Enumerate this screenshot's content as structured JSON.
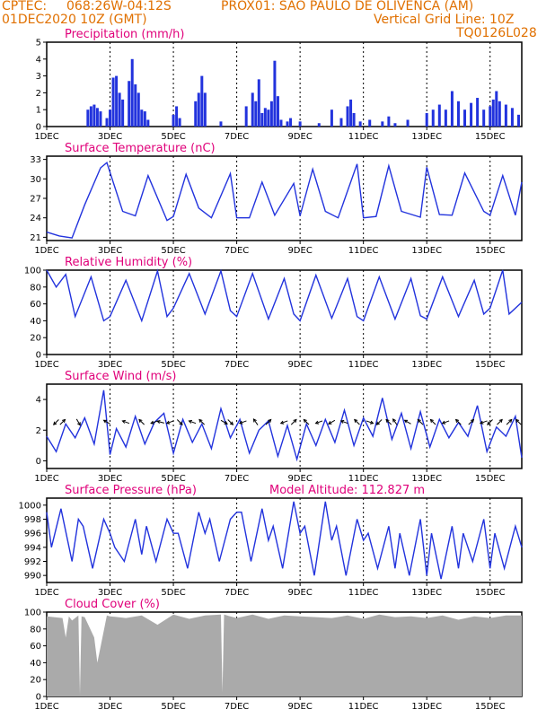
{
  "header": {
    "source": "CPTEC:",
    "coords": "068:26W-04:12S",
    "station": "PROX01: SAO PAULO DE OLIVENCA (AM)",
    "date": "01DEC2020 10Z (GMT)",
    "grid_note": "Vertical Grid Line: 10Z",
    "code": "TQ0126L028"
  },
  "colors": {
    "header": "#e07000",
    "title": "#e0007a",
    "series": "#2233dd",
    "cloud": "#aaaaaa"
  },
  "x_axis": {
    "day_start": 1,
    "day_end": 16,
    "tick_days": [
      1,
      3,
      5,
      7,
      9,
      11,
      13,
      15
    ],
    "tick_labels": [
      "1DEC",
      "3DEC",
      "5DEC",
      "7DEC",
      "9DEC",
      "11DEC",
      "13DEC",
      "15DEC"
    ]
  },
  "chart_data": [
    {
      "key": "precip",
      "type": "bar",
      "title": "Precipitation (mm/h)",
      "ylim": [
        0,
        5
      ],
      "yticks": [
        0,
        1,
        2,
        3,
        4,
        5
      ],
      "x": [
        2.3,
        2.4,
        2.5,
        2.6,
        2.7,
        2.9,
        3.0,
        3.1,
        3.2,
        3.3,
        3.4,
        3.6,
        3.7,
        3.8,
        3.9,
        4.0,
        4.1,
        4.2,
        5.0,
        5.1,
        5.2,
        5.7,
        5.8,
        5.9,
        6.0,
        6.5,
        7.3,
        7.5,
        7.6,
        7.7,
        7.8,
        7.9,
        8.0,
        8.1,
        8.2,
        8.3,
        8.4,
        8.6,
        8.7,
        9.0,
        9.6,
        10.0,
        10.3,
        10.5,
        10.6,
        10.7,
        10.9,
        11.2,
        11.6,
        11.8,
        12.0,
        12.4,
        13.0,
        13.2,
        13.4,
        13.6,
        13.8,
        14.0,
        14.2,
        14.4,
        14.6,
        14.8,
        15.0,
        15.1,
        15.2,
        15.3,
        15.5,
        15.7,
        15.9
      ],
      "values": [
        1.0,
        1.2,
        1.3,
        1.1,
        0.9,
        0.5,
        1.0,
        2.9,
        3.0,
        2.0,
        1.6,
        2.7,
        4.0,
        2.5,
        2.0,
        1.0,
        0.9,
        0.4,
        0.7,
        1.2,
        0.5,
        1.5,
        2.0,
        3.0,
        2.0,
        0.3,
        1.2,
        2.0,
        1.5,
        2.8,
        0.8,
        1.1,
        1.0,
        1.5,
        3.9,
        1.8,
        0.4,
        0.3,
        0.5,
        0.3,
        0.2,
        1.0,
        0.5,
        1.2,
        1.6,
        0.8,
        0.3,
        0.4,
        0.3,
        0.6,
        0.2,
        0.4,
        0.8,
        1.0,
        1.3,
        1.0,
        2.1,
        1.5,
        1.0,
        1.4,
        1.7,
        1.0,
        1.2,
        1.6,
        2.1,
        1.5,
        1.3,
        1.1,
        0.7
      ]
    },
    {
      "key": "temp",
      "type": "line",
      "title": "Surface Temperature (nC)",
      "ylim": [
        20.5,
        33.5
      ],
      "yticks": [
        21,
        24,
        27,
        30,
        33
      ],
      "x": [
        1.0,
        1.4,
        1.8,
        2.2,
        2.7,
        2.9,
        3.4,
        3.8,
        4.2,
        4.8,
        5.0,
        5.4,
        5.8,
        6.2,
        6.8,
        7.0,
        7.4,
        7.8,
        8.2,
        8.8,
        9.0,
        9.4,
        9.8,
        10.2,
        10.8,
        11.0,
        11.4,
        11.8,
        12.2,
        12.8,
        13.0,
        13.4,
        13.8,
        14.2,
        14.8,
        15.0,
        15.4,
        15.8,
        16.0
      ],
      "values": [
        21.8,
        21.2,
        20.9,
        26.0,
        31.7,
        32.5,
        25.0,
        24.3,
        30.5,
        23.6,
        24.2,
        30.7,
        25.5,
        24.0,
        30.8,
        24.0,
        24.0,
        29.5,
        24.4,
        29.3,
        24.3,
        31.5,
        25.0,
        24.0,
        32.3,
        24.0,
        24.2,
        32.0,
        25.0,
        24.1,
        31.8,
        24.5,
        24.4,
        30.9,
        25.0,
        24.4,
        30.5,
        24.4,
        29.5
      ]
    },
    {
      "key": "rh",
      "type": "line",
      "title": "Relative Humidity (%)",
      "ylim": [
        0,
        100
      ],
      "yticks": [
        0,
        20,
        40,
        60,
        80,
        100
      ],
      "x": [
        1.0,
        1.3,
        1.6,
        1.9,
        2.4,
        2.8,
        3.0,
        3.5,
        4.0,
        4.5,
        4.8,
        5.0,
        5.5,
        6.0,
        6.5,
        6.8,
        7.0,
        7.5,
        8.0,
        8.5,
        8.8,
        9.0,
        9.5,
        10.0,
        10.5,
        10.8,
        11.0,
        11.5,
        12.0,
        12.5,
        12.8,
        13.0,
        13.5,
        14.0,
        14.5,
        14.8,
        15.0,
        15.4,
        15.6,
        16.0
      ],
      "values": [
        100,
        80,
        95,
        45,
        92,
        40,
        45,
        88,
        40,
        99,
        45,
        55,
        96,
        48,
        99,
        52,
        45,
        96,
        42,
        90,
        48,
        40,
        94,
        43,
        90,
        45,
        40,
        92,
        42,
        90,
        46,
        42,
        92,
        45,
        88,
        48,
        55,
        100,
        48,
        62
      ]
    },
    {
      "key": "wind",
      "type": "line",
      "title": "Surface Wind (m/s)",
      "ylim": [
        -0.5,
        5
      ],
      "yticks": [
        0,
        2,
        4
      ],
      "x": [
        1.0,
        1.3,
        1.6,
        1.9,
        2.2,
        2.5,
        2.8,
        3.0,
        3.2,
        3.5,
        3.8,
        4.1,
        4.4,
        4.7,
        5.0,
        5.3,
        5.6,
        5.9,
        6.2,
        6.5,
        6.8,
        7.1,
        7.4,
        7.7,
        8.0,
        8.3,
        8.6,
        8.9,
        9.2,
        9.5,
        9.8,
        10.1,
        10.4,
        10.7,
        11.0,
        11.3,
        11.6,
        11.9,
        12.2,
        12.5,
        12.8,
        13.1,
        13.4,
        13.7,
        14.0,
        14.3,
        14.6,
        14.9,
        15.2,
        15.5,
        15.8,
        16.0
      ],
      "values": [
        1.6,
        0.6,
        2.4,
        1.5,
        2.8,
        1.1,
        4.6,
        0.4,
        2.1,
        0.9,
        2.9,
        1.1,
        2.5,
        3.1,
        0.5,
        2.7,
        1.2,
        2.4,
        0.8,
        3.4,
        1.5,
        2.7,
        0.5,
        2.0,
        2.6,
        0.3,
        2.3,
        0.1,
        2.4,
        1.0,
        2.7,
        1.2,
        3.3,
        1.0,
        2.8,
        1.6,
        4.1,
        1.4,
        3.1,
        0.8,
        3.2,
        0.9,
        2.7,
        1.5,
        2.5,
        1.6,
        3.6,
        0.6,
        2.2,
        1.6,
        2.9,
        0.2
      ],
      "arrows": {
        "x": [
          1.3,
          1.5,
          2.0,
          2.9,
          3.5,
          4.0,
          4.4,
          4.6,
          4.9,
          5.2,
          5.6,
          5.9,
          6.6,
          6.8,
          7.2,
          7.6,
          8.0,
          8.5,
          8.8,
          9.2,
          9.6,
          10.0,
          10.4,
          10.8,
          11.2,
          11.5,
          11.8,
          12.0,
          12.4,
          12.8,
          13.2,
          13.6,
          14.0,
          14.4,
          14.8,
          15.0,
          15.3,
          15.6,
          15.9
        ],
        "angle": [
          225,
          45,
          300,
          150,
          160,
          135,
          200,
          165,
          200,
          315,
          160,
          135,
          330,
          315,
          200,
          125,
          45,
          200,
          45,
          135,
          200,
          210,
          160,
          135,
          340,
          225,
          135,
          125,
          150,
          135,
          135,
          200,
          135,
          45,
          200,
          225,
          45,
          45,
          135
        ]
      }
    },
    {
      "key": "press",
      "type": "line",
      "title": "Surface Pressure (hPa)",
      "extra_label": "Model Altitude: 112.827 m",
      "ylim": [
        989,
        1001
      ],
      "yticks": [
        990,
        992,
        994,
        996,
        998,
        1000
      ],
      "x": [
        1.0,
        1.15,
        1.45,
        1.8,
        2.0,
        2.15,
        2.45,
        2.8,
        3.0,
        3.15,
        3.45,
        3.8,
        4.0,
        4.15,
        4.45,
        4.8,
        5.0,
        5.15,
        5.45,
        5.8,
        6.0,
        6.15,
        6.45,
        6.8,
        7.0,
        7.15,
        7.45,
        7.8,
        8.0,
        8.15,
        8.45,
        8.8,
        9.0,
        9.15,
        9.45,
        9.8,
        10.0,
        10.15,
        10.45,
        10.8,
        11.0,
        11.15,
        11.45,
        11.8,
        12.0,
        12.15,
        12.45,
        12.8,
        13.0,
        13.15,
        13.45,
        13.8,
        14.0,
        14.15,
        14.45,
        14.8,
        15.0,
        15.15,
        15.45,
        15.8,
        16.0
      ],
      "values": [
        999,
        994,
        999.5,
        992,
        998,
        997,
        991,
        998,
        996,
        994,
        992,
        998,
        993,
        997,
        992,
        998,
        996,
        996,
        991,
        999,
        996,
        998,
        992,
        998,
        999,
        999,
        992,
        999.5,
        995,
        997,
        991,
        1000.5,
        996,
        997,
        990,
        1000.5,
        995,
        997,
        990,
        998,
        995,
        996,
        991,
        997,
        991,
        996,
        990,
        998,
        990,
        996,
        989.5,
        997,
        991,
        996,
        992,
        998,
        991,
        996,
        991,
        997,
        994
      ]
    },
    {
      "key": "cloud",
      "type": "area",
      "title": "Cloud Cover (%)",
      "ylim": [
        0,
        100
      ],
      "yticks": [
        0,
        20,
        40,
        60,
        80,
        100
      ],
      "x": [
        1.0,
        1.5,
        1.6,
        1.7,
        1.8,
        2.0,
        2.05,
        2.1,
        2.2,
        2.5,
        2.6,
        2.9,
        3.0,
        3.5,
        4.0,
        4.5,
        5.0,
        5.5,
        6.0,
        6.5,
        6.55,
        6.6,
        6.7,
        7.0,
        7.5,
        8.0,
        8.5,
        9.0,
        9.5,
        10.0,
        10.5,
        11.0,
        11.5,
        12.0,
        12.5,
        13.0,
        13.5,
        14.0,
        14.5,
        15.0,
        15.5,
        16.0
      ],
      "values": [
        95,
        93,
        70,
        95,
        90,
        96,
        2,
        95,
        94,
        70,
        40,
        96,
        95,
        93,
        96,
        85,
        97,
        92,
        96,
        97,
        5,
        97,
        96,
        93,
        97,
        92,
        96,
        95,
        94,
        93,
        96,
        92,
        97,
        94,
        95,
        93,
        96,
        91,
        95,
        93,
        96,
        96
      ]
    }
  ]
}
